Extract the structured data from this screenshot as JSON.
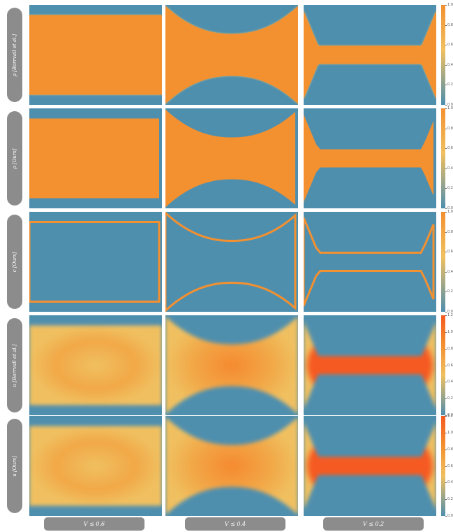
{
  "chart_data": {
    "type": "heatmap",
    "rows": [
      {
        "label": "ρ [Borrvall et al.]"
      },
      {
        "label": "ρ [Ours]"
      },
      {
        "label": "c [Ours]"
      },
      {
        "label": "u [Borrvall et al.]"
      },
      {
        "label": "u [Ours]"
      }
    ],
    "columns": [
      {
        "label": "V ≤ 0.6"
      },
      {
        "label": "V ≤ 0.4"
      },
      {
        "label": "V ≤ 0.2"
      }
    ],
    "colorbars": [
      {
        "ticks": [
          "1.0",
          "0.8",
          "0.6",
          "0.4",
          "0.2",
          "0.0"
        ]
      },
      {
        "ticks": [
          "1.0",
          "0.8",
          "0.6",
          "0.4",
          "0.2",
          "0.0"
        ]
      },
      {
        "ticks": [
          "1.0",
          "0.8",
          "0.6",
          "0.4",
          "0.2",
          "0.0"
        ]
      },
      {
        "ticks": [
          "1.2",
          "1.0",
          "0.8",
          "0.6",
          "0.4",
          "0.2",
          "0.0"
        ]
      },
      {
        "ticks": [
          "1.2",
          "1.0",
          "0.8",
          "0.6",
          "0.4",
          "0.2",
          "0.0"
        ]
      }
    ],
    "colors": {
      "low": "#4f8fae",
      "mid": "#f0c060",
      "high": "#f39030",
      "peak": "#f55a20"
    }
  }
}
